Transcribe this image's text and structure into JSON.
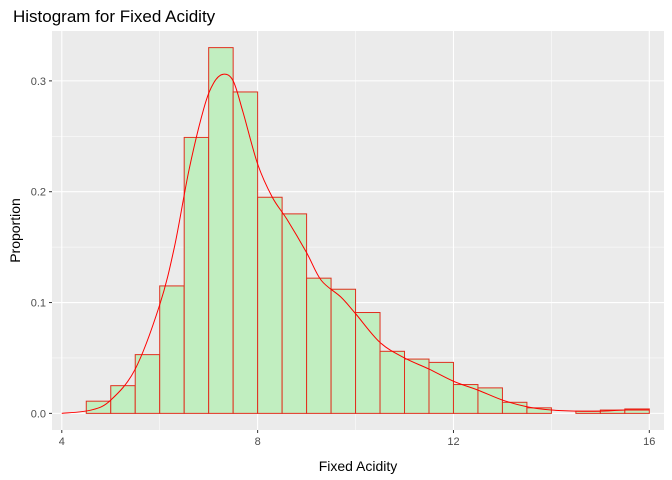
{
  "chart_data": {
    "type": "bar",
    "title": "Histogram for Fixed Acidity",
    "xlabel": "Fixed Acidity",
    "ylabel": "Proportion",
    "xlim": [
      3.8,
      16.3
    ],
    "ylim": [
      -0.015,
      0.345
    ],
    "x_ticks": [
      {
        "value": 4,
        "label": "4"
      },
      {
        "value": 8,
        "label": "8"
      },
      {
        "value": 12,
        "label": "12"
      },
      {
        "value": 16,
        "label": "16"
      }
    ],
    "y_ticks": [
      {
        "value": 0.0,
        "label": "0.0"
      },
      {
        "value": 0.1,
        "label": "0.1"
      },
      {
        "value": 0.2,
        "label": "0.2"
      },
      {
        "value": 0.3,
        "label": "0.3"
      }
    ],
    "grid": true,
    "bin_width": 0.5,
    "bins": [
      {
        "start": 4.0,
        "end": 4.5,
        "value": 0.0
      },
      {
        "start": 4.5,
        "end": 5.0,
        "value": 0.011
      },
      {
        "start": 5.0,
        "end": 5.5,
        "value": 0.025
      },
      {
        "start": 5.5,
        "end": 6.0,
        "value": 0.053
      },
      {
        "start": 6.0,
        "end": 6.5,
        "value": 0.115
      },
      {
        "start": 6.5,
        "end": 7.0,
        "value": 0.249
      },
      {
        "start": 7.0,
        "end": 7.5,
        "value": 0.33
      },
      {
        "start": 7.5,
        "end": 8.0,
        "value": 0.29
      },
      {
        "start": 8.0,
        "end": 8.5,
        "value": 0.195
      },
      {
        "start": 8.5,
        "end": 9.0,
        "value": 0.18
      },
      {
        "start": 9.0,
        "end": 9.5,
        "value": 0.122
      },
      {
        "start": 9.5,
        "end": 10.0,
        "value": 0.112
      },
      {
        "start": 10.0,
        "end": 10.5,
        "value": 0.091
      },
      {
        "start": 10.5,
        "end": 11.0,
        "value": 0.056
      },
      {
        "start": 11.0,
        "end": 11.5,
        "value": 0.049
      },
      {
        "start": 11.5,
        "end": 12.0,
        "value": 0.046
      },
      {
        "start": 12.0,
        "end": 12.5,
        "value": 0.026
      },
      {
        "start": 12.5,
        "end": 13.0,
        "value": 0.023
      },
      {
        "start": 13.0,
        "end": 13.5,
        "value": 0.01
      },
      {
        "start": 13.5,
        "end": 14.0,
        "value": 0.005
      },
      {
        "start": 14.0,
        "end": 14.5,
        "value": 0.0
      },
      {
        "start": 14.5,
        "end": 15.0,
        "value": 0.002
      },
      {
        "start": 15.0,
        "end": 15.5,
        "value": 0.003
      },
      {
        "start": 15.5,
        "end": 16.0,
        "value": 0.004
      }
    ],
    "density": {
      "x": [
        4.0,
        4.6,
        5.0,
        5.5,
        6.0,
        6.3,
        6.6,
        6.9,
        7.1,
        7.3,
        7.5,
        7.7,
        8.0,
        8.3,
        8.6,
        9.0,
        9.3,
        9.7,
        10.0,
        10.5,
        11.0,
        11.5,
        12.0,
        12.5,
        13.0,
        13.5,
        14.0,
        14.5,
        15.0,
        15.5,
        16.0
      ],
      "y": [
        0.0,
        0.003,
        0.012,
        0.04,
        0.098,
        0.15,
        0.22,
        0.275,
        0.298,
        0.306,
        0.3,
        0.272,
        0.225,
        0.195,
        0.175,
        0.145,
        0.12,
        0.105,
        0.09,
        0.064,
        0.05,
        0.04,
        0.029,
        0.021,
        0.012,
        0.006,
        0.003,
        0.002,
        0.002,
        0.003,
        0.003
      ]
    },
    "colors": {
      "bar_fill": "#c1eec0",
      "bar_stroke": "#e0301e",
      "density_line": "#ff0000",
      "panel_bg": "#ebebeb",
      "grid": "#ffffff",
      "tick_text": "#4d4d4d",
      "tick_mark": "#333333"
    }
  }
}
